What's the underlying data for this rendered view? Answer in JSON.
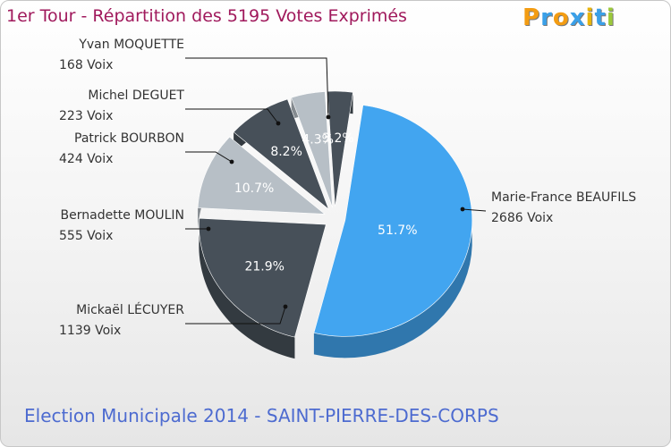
{
  "title": "1er Tour - Répartition des 5195 Votes Exprimés",
  "subtitle": "Election Municipale 2014 - SAINT-PIERRE-DES-CORPS",
  "logo": {
    "text": "Proxiti"
  },
  "chart_data": {
    "type": "pie",
    "title": "1er Tour - Répartition des 5195 Votes Exprimés",
    "total": 5195,
    "slices": [
      {
        "name": "Marie-France BEAUFILS",
        "votes": 2686,
        "votes_label": "2686 Voix",
        "percent": 51.7,
        "percent_label": "51.7%",
        "color": "#42a5f0"
      },
      {
        "name": "Mickaël LÉCUYER",
        "votes": 1139,
        "votes_label": "1139 Voix",
        "percent": 21.9,
        "percent_label": "21.9%",
        "color": "#475059"
      },
      {
        "name": "Bernadette MOULIN",
        "votes": 555,
        "votes_label": "555 Voix",
        "percent": 10.7,
        "percent_label": "10.7%",
        "color": "#b7bfc6"
      },
      {
        "name": "Patrick BOURBON",
        "votes": 424,
        "votes_label": "424 Voix",
        "percent": 8.2,
        "percent_label": "8.2%",
        "color": "#475059"
      },
      {
        "name": "Michel DEGUET",
        "votes": 223,
        "votes_label": "223 Voix",
        "percent": 4.3,
        "percent_label": "4.3%",
        "color": "#b7bfc6"
      },
      {
        "name": "Yvan MOQUETTE",
        "votes": 168,
        "votes_label": "168 Voix",
        "percent": 3.2,
        "percent_label": "3.2%",
        "color": "#475059"
      }
    ]
  }
}
